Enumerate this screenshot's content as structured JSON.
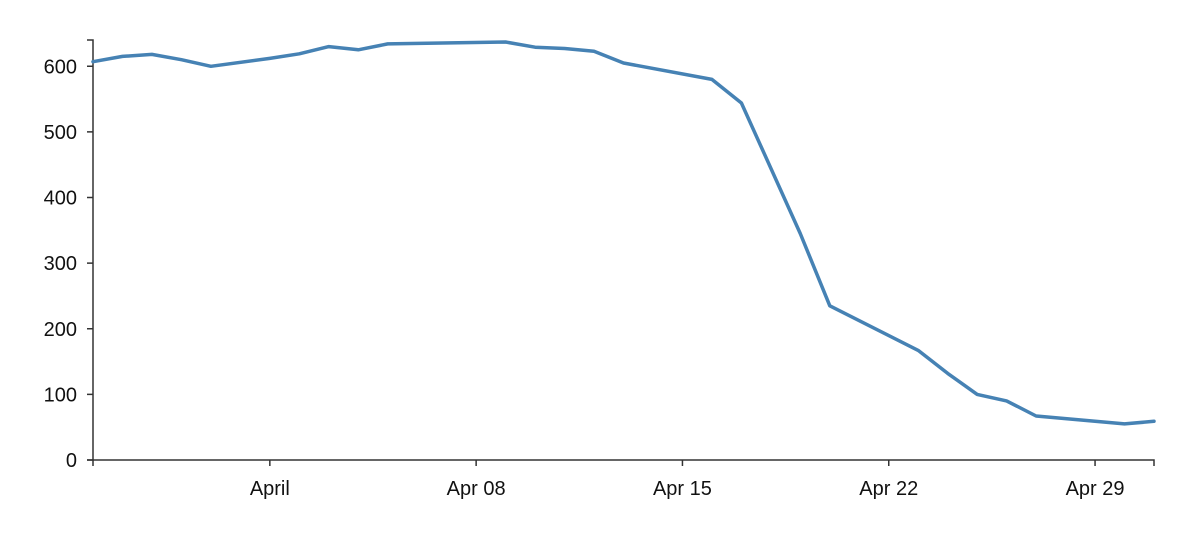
{
  "chart_data": {
    "type": "line",
    "title": "",
    "xlabel": "",
    "ylabel": "",
    "grid": false,
    "legend": "none",
    "x_domain": [
      "2020-03-26",
      "2020-05-01"
    ],
    "ylim": [
      0,
      640
    ],
    "y_ticks": [
      0,
      100,
      200,
      300,
      400,
      500,
      600
    ],
    "x_ticks": [
      {
        "date": "2020-04-01",
        "label": "April"
      },
      {
        "date": "2020-04-08",
        "label": "Apr 08"
      },
      {
        "date": "2020-04-15",
        "label": "Apr 15"
      },
      {
        "date": "2020-04-22",
        "label": "Apr 22"
      },
      {
        "date": "2020-04-29",
        "label": "Apr 29"
      }
    ],
    "series": [
      {
        "color": "#4682b4",
        "points": [
          {
            "x": "2020-03-26",
            "y": 607
          },
          {
            "x": "2020-03-27",
            "y": 615
          },
          {
            "x": "2020-03-28",
            "y": 618
          },
          {
            "x": "2020-03-29",
            "y": 610
          },
          {
            "x": "2020-03-30",
            "y": 600
          },
          {
            "x": "2020-04-01",
            "y": 612
          },
          {
            "x": "2020-04-02",
            "y": 619
          },
          {
            "x": "2020-04-03",
            "y": 630
          },
          {
            "x": "2020-04-04",
            "y": 625
          },
          {
            "x": "2020-04-05",
            "y": 634
          },
          {
            "x": "2020-04-09",
            "y": 637
          },
          {
            "x": "2020-04-10",
            "y": 629
          },
          {
            "x": "2020-04-11",
            "y": 627
          },
          {
            "x": "2020-04-12",
            "y": 623
          },
          {
            "x": "2020-04-13",
            "y": 605
          },
          {
            "x": "2020-04-16",
            "y": 580
          },
          {
            "x": "2020-04-17",
            "y": 544
          },
          {
            "x": "2020-04-19",
            "y": 345
          },
          {
            "x": "2020-04-20",
            "y": 235
          },
          {
            "x": "2020-04-23",
            "y": 167
          },
          {
            "x": "2020-04-24",
            "y": 132
          },
          {
            "x": "2020-04-25",
            "y": 100
          },
          {
            "x": "2020-04-26",
            "y": 90
          },
          {
            "x": "2020-04-27",
            "y": 67
          },
          {
            "x": "2020-04-30",
            "y": 55
          },
          {
            "x": "2020-05-01",
            "y": 59
          }
        ]
      }
    ]
  }
}
